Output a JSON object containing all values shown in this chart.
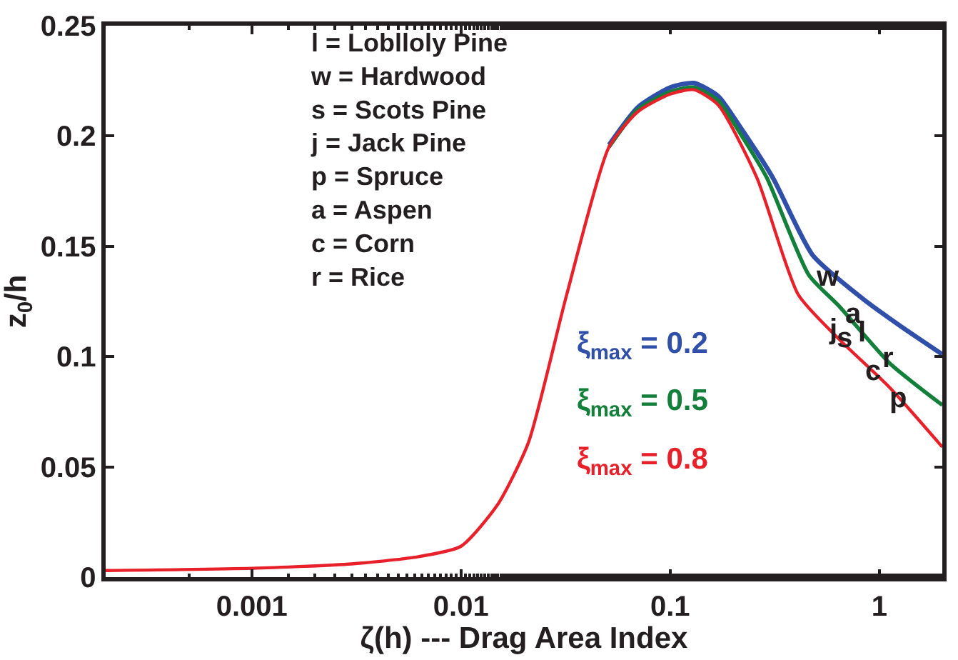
{
  "chart_data": {
    "type": "line",
    "xlabel": "ζ(h) --- Drag Area Index",
    "ylabel": "z$_{0}$/h",
    "log": "x",
    "xlim": [
      0.0002,
      2
    ],
    "ylim": [
      0,
      0.25
    ],
    "xticks": [
      0.001,
      0.01,
      0.1,
      1
    ],
    "yticks": [
      0,
      0.05,
      0.1,
      0.15,
      0.2,
      0.25
    ],
    "legend": false,
    "marker": "none",
    "line_style": "solid",
    "series": [
      {
        "name": "ξ$_{max}$ = 0.2",
        "color": "#2f4fa8",
        "x": [
          0.051,
          0.07,
          0.1,
          0.13,
          0.17,
          0.22,
          0.31,
          0.48,
          0.84,
          1.3,
          2
        ],
        "values": [
          0.196,
          0.213,
          0.222,
          0.224,
          0.218,
          0.203,
          0.181,
          0.146,
          0.126,
          0.113,
          0.101
        ]
      },
      {
        "name": "ξ$_{max}$ = 0.5",
        "color": "#127f3a",
        "x": [
          0.051,
          0.07,
          0.1,
          0.13,
          0.17,
          0.22,
          0.29,
          0.46,
          0.64,
          1.12,
          2
        ],
        "values": [
          0.195,
          0.212,
          0.22,
          0.222,
          0.216,
          0.2,
          0.181,
          0.137,
          0.123,
          0.097,
          0.078
        ]
      },
      {
        "name": "ξ$_{max}$ = 0.8",
        "color": "#e8202a",
        "x": [
          0.0002,
          0.001,
          0.003,
          0.006,
          0.01,
          0.015,
          0.021,
          0.032,
          0.051,
          0.07,
          0.1,
          0.13,
          0.17,
          0.26,
          0.41,
          0.64,
          1.12,
          2
        ],
        "values": [
          0.003,
          0.004,
          0.006,
          0.009,
          0.014,
          0.033,
          0.061,
          0.128,
          0.195,
          0.211,
          0.219,
          0.221,
          0.214,
          0.181,
          0.128,
          0.108,
          0.086,
          0.059
        ]
      }
    ],
    "annotations": [
      "l = Loblloly Pine\nw = Hardwood\ns = Scots Pine\nj = Jack Pine\np = Spruce\na = Aspen\nc = Corn\nr = Rice",
      {
        "text": "w",
        "x": 0.56,
        "y": 0.136
      },
      {
        "text": "j",
        "x": 0.6,
        "y": 0.112
      },
      {
        "text": "a",
        "x": 0.75,
        "y": 0.119
      },
      {
        "text": "s",
        "x": 0.68,
        "y": 0.108
      },
      {
        "text": "l",
        "x": 0.83,
        "y": 0.111
      },
      {
        "text": "c",
        "x": 0.93,
        "y": 0.093
      },
      {
        "text": "r",
        "x": 1.1,
        "y": 0.099
      },
      {
        "text": "p",
        "x": 1.22,
        "y": 0.081
      }
    ]
  }
}
